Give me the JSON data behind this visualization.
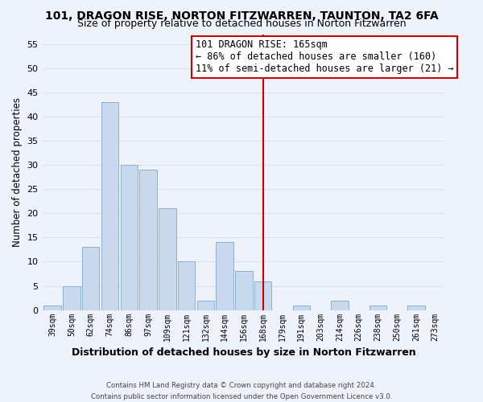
{
  "title": "101, DRAGON RISE, NORTON FITZWARREN, TAUNTON, TA2 6FA",
  "subtitle": "Size of property relative to detached houses in Norton Fitzwarren",
  "xlabel": "Distribution of detached houses by size in Norton Fitzwarren",
  "ylabel": "Number of detached properties",
  "bar_labels": [
    "39sqm",
    "50sqm",
    "62sqm",
    "74sqm",
    "86sqm",
    "97sqm",
    "109sqm",
    "121sqm",
    "132sqm",
    "144sqm",
    "156sqm",
    "168sqm",
    "179sqm",
    "191sqm",
    "203sqm",
    "214sqm",
    "226sqm",
    "238sqm",
    "250sqm",
    "261sqm",
    "273sqm"
  ],
  "bar_values": [
    1,
    5,
    13,
    43,
    30,
    29,
    21,
    10,
    2,
    14,
    8,
    6,
    0,
    1,
    0,
    2,
    0,
    1,
    0,
    1,
    0
  ],
  "bar_color": "#c8d9ee",
  "bar_edge_color": "#8ab0d4",
  "reference_line_x_label": "168sqm",
  "reference_line_color": "#cc0000",
  "ylim": [
    0,
    57
  ],
  "yticks": [
    0,
    5,
    10,
    15,
    20,
    25,
    30,
    35,
    40,
    45,
    50,
    55
  ],
  "annotation_title": "101 DRAGON RISE: 165sqm",
  "annotation_line1": "← 86% of detached houses are smaller (160)",
  "annotation_line2": "11% of semi-detached houses are larger (21) →",
  "annotation_box_color": "#ffffff",
  "annotation_box_edge": "#cc0000",
  "footer_line1": "Contains HM Land Registry data © Crown copyright and database right 2024.",
  "footer_line2": "Contains public sector information licensed under the Open Government Licence v3.0.",
  "background_color": "#eef2fa",
  "grid_color": "#d8e4f0",
  "title_fontsize": 10,
  "subtitle_fontsize": 9
}
